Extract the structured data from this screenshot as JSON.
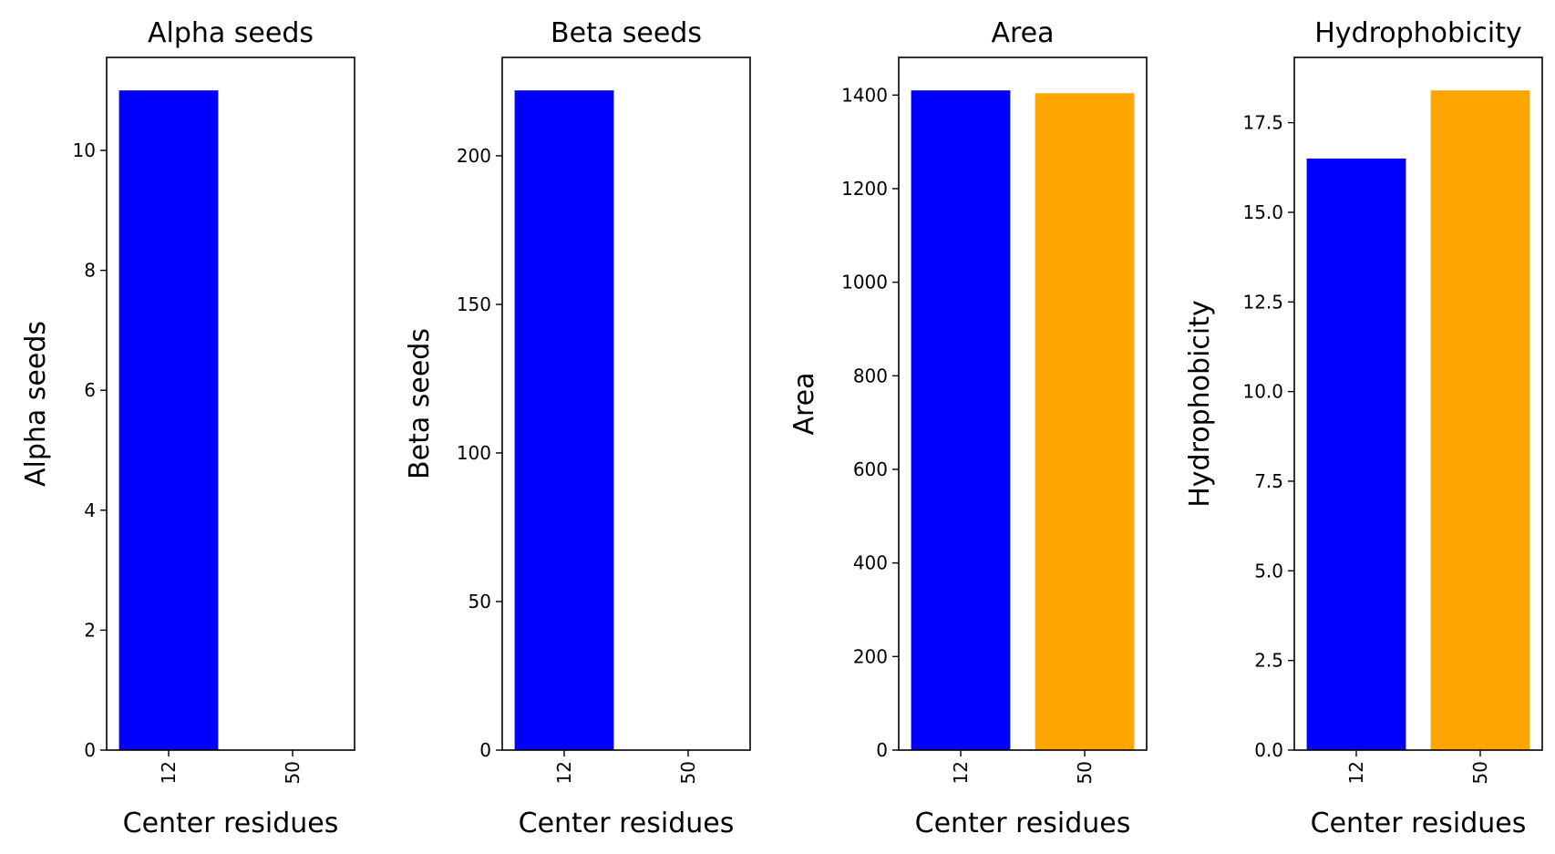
{
  "chart_data": [
    {
      "type": "bar",
      "title": "Alpha seeds",
      "xlabel": "Center residues",
      "ylabel": "Alpha seeds",
      "categories": [
        "12",
        "50"
      ],
      "values": [
        11,
        0
      ],
      "colors": [
        "#0000ff",
        "#ffa500"
      ],
      "ylim": [
        0,
        11.55
      ],
      "yticks": [
        0,
        2,
        4,
        6,
        8,
        10
      ],
      "ytick_labels": [
        "0",
        "2",
        "4",
        "6",
        "8",
        "10"
      ],
      "grid": false
    },
    {
      "type": "bar",
      "title": "Beta seeds",
      "xlabel": "Center residues",
      "ylabel": "Beta seeds",
      "categories": [
        "12",
        "50"
      ],
      "values": [
        222,
        0
      ],
      "colors": [
        "#0000ff",
        "#ffa500"
      ],
      "ylim": [
        0,
        233.1
      ],
      "yticks": [
        0,
        50,
        100,
        150,
        200
      ],
      "ytick_labels": [
        "0",
        "50",
        "100",
        "150",
        "200"
      ],
      "grid": false
    },
    {
      "type": "bar",
      "title": "Area",
      "xlabel": "Center residues",
      "ylabel": "Area",
      "categories": [
        "12",
        "50"
      ],
      "values": [
        1410,
        1404
      ],
      "colors": [
        "#0000ff",
        "#ffa500"
      ],
      "ylim": [
        0,
        1480.5
      ],
      "yticks": [
        0,
        200,
        400,
        600,
        800,
        1000,
        1200,
        1400
      ],
      "ytick_labels": [
        "0",
        "200",
        "400",
        "600",
        "800",
        "1000",
        "1200",
        "1400"
      ],
      "grid": false
    },
    {
      "type": "bar",
      "title": "Hydrophobicity",
      "xlabel": "Center residues",
      "ylabel": "Hydrophobicity",
      "categories": [
        "12",
        "50"
      ],
      "values": [
        16.5,
        18.4
      ],
      "colors": [
        "#0000ff",
        "#ffa500"
      ],
      "ylim": [
        0,
        19.32
      ],
      "yticks": [
        0,
        2.5,
        5,
        7.5,
        10,
        12.5,
        15,
        17.5
      ],
      "ytick_labels": [
        "0.0",
        "2.5",
        "5.0",
        "7.5",
        "10.0",
        "12.5",
        "15.0",
        "17.5"
      ],
      "grid": false
    }
  ]
}
